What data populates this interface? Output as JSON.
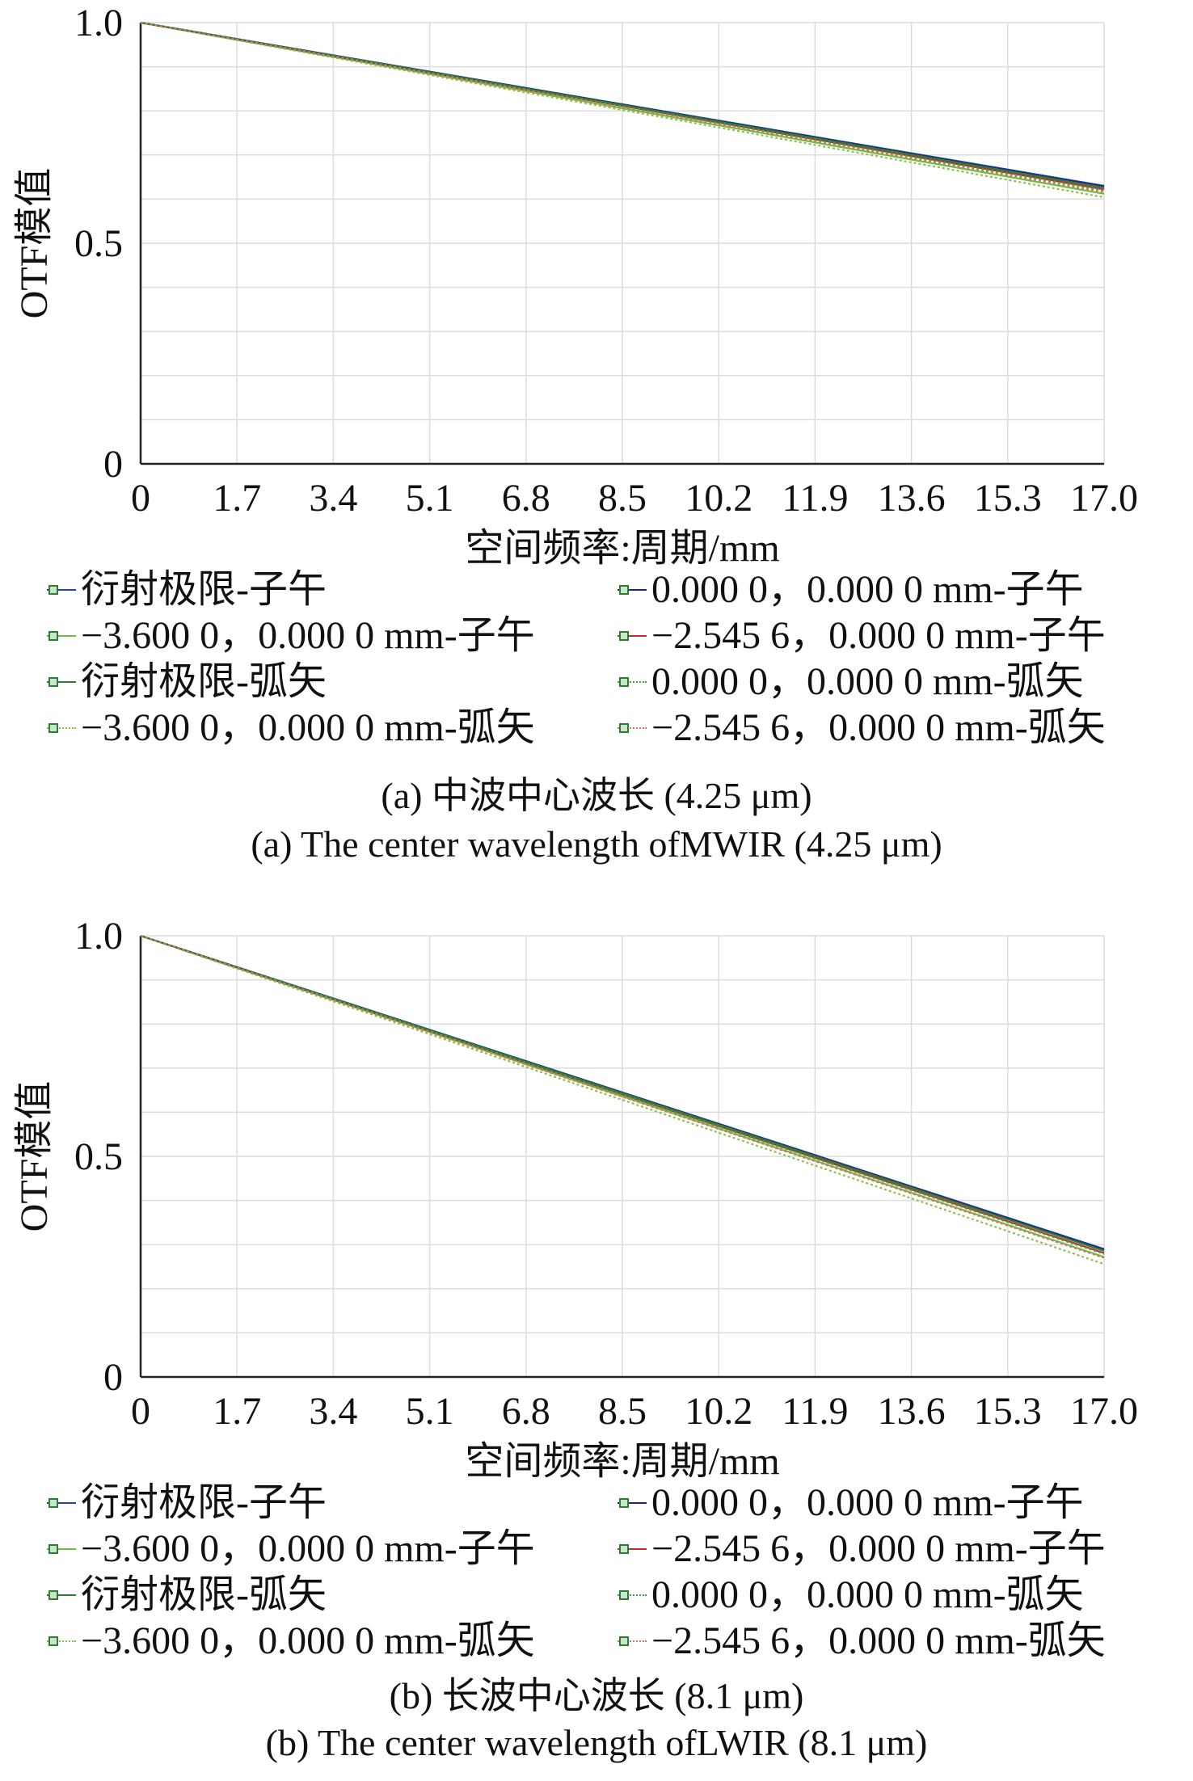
{
  "chart_data": [
    {
      "type": "line",
      "xlabel": "空间频率:周期/mm",
      "ylabel": "OTF模值",
      "xlim": [
        0,
        17.0
      ],
      "ylim": [
        0,
        1.0
      ],
      "x_ticks": [
        "0",
        "1.7",
        "3.4",
        "5.1",
        "6.8",
        "8.5",
        "10.2",
        "11.9",
        "13.6",
        "15.3",
        "17.0"
      ],
      "y_ticks": [
        "0",
        "0.5",
        "1.0"
      ],
      "grid": true,
      "legend_position": "bottom",
      "caption_cn": "(a) 中波中心波长  (4.25 μm)",
      "caption_en": "(a) The center wavelength ofMWIR (4.25 μm)",
      "series": [
        {
          "name": "衍射极限-子午",
          "color": "#1f3fbf",
          "dash": "solid",
          "x": [
            0,
            17.0
          ],
          "y": [
            1.0,
            0.63
          ]
        },
        {
          "name": "0.000 0，0.000 0 mm-子午",
          "color": "#1a237e",
          "dash": "solid",
          "x": [
            0,
            17.0
          ],
          "y": [
            1.0,
            0.628
          ]
        },
        {
          "name": "−3.600 0，0.000 0 mm-子午",
          "color": "#6abf40",
          "dash": "solid",
          "x": [
            0,
            17.0
          ],
          "y": [
            1.0,
            0.612
          ]
        },
        {
          "name": "−2.545 6，0.000 0 mm-子午",
          "color": "#c62828",
          "dash": "solid",
          "x": [
            0,
            17.0
          ],
          "y": [
            1.0,
            0.622
          ]
        },
        {
          "name": "衍射极限-弧矢",
          "color": "#2e7d32",
          "dash": "solid",
          "x": [
            0,
            17.0
          ],
          "y": [
            1.0,
            0.626
          ]
        },
        {
          "name": "0.000 0，0.000 0 mm-弧矢",
          "color": "#43a047",
          "dash": "dotted",
          "x": [
            0,
            17.0
          ],
          "y": [
            1.0,
            0.62
          ]
        },
        {
          "name": "−3.600 0，0.000 0 mm-弧矢",
          "color": "#8bc34a",
          "dash": "dotted",
          "x": [
            0,
            17.0
          ],
          "y": [
            1.0,
            0.604
          ]
        },
        {
          "name": "−2.545 6，0.000 0 mm-弧矢",
          "color": "#d4756a",
          "dash": "dotted",
          "x": [
            0,
            17.0
          ],
          "y": [
            1.0,
            0.616
          ]
        }
      ]
    },
    {
      "type": "line",
      "xlabel": "空间频率:周期/mm",
      "ylabel": "OTF模值",
      "xlim": [
        0,
        17.0
      ],
      "ylim": [
        0,
        1.0
      ],
      "x_ticks": [
        "0",
        "1.7",
        "3.4",
        "5.1",
        "6.8",
        "8.5",
        "10.2",
        "11.9",
        "13.6",
        "15.3",
        "17.0"
      ],
      "y_ticks": [
        "0",
        "0.5",
        "1.0"
      ],
      "grid": true,
      "legend_position": "bottom",
      "caption_cn": "(b) 长波中心波长  (8.1 μm)",
      "caption_en": "(b) The center wavelength ofLWIR (8.1 μm)",
      "series": [
        {
          "name": "衍射极限-子午",
          "color": "#1f3fbf",
          "dash": "solid",
          "x": [
            0,
            17.0
          ],
          "y": [
            1.0,
            0.29
          ]
        },
        {
          "name": "0.000 0，0.000 0 mm-子午",
          "color": "#1a237e",
          "dash": "solid",
          "x": [
            0,
            17.0
          ],
          "y": [
            1.0,
            0.288
          ]
        },
        {
          "name": "−3.600 0，0.000 0 mm-子午",
          "color": "#6abf40",
          "dash": "solid",
          "x": [
            0,
            17.0
          ],
          "y": [
            1.0,
            0.272
          ]
        },
        {
          "name": "−2.545 6，0.000 0 mm-子午",
          "color": "#c62828",
          "dash": "solid",
          "x": [
            0,
            17.0
          ],
          "y": [
            1.0,
            0.281
          ]
        },
        {
          "name": "衍射极限-弧矢",
          "color": "#2e7d32",
          "dash": "solid",
          "x": [
            0,
            17.0
          ],
          "y": [
            1.0,
            0.286
          ]
        },
        {
          "name": "0.000 0，0.000 0 mm-弧矢",
          "color": "#43a047",
          "dash": "dotted",
          "x": [
            0,
            17.0
          ],
          "y": [
            1.0,
            0.279
          ]
        },
        {
          "name": "−3.600 0，0.000 0 mm-弧矢",
          "color": "#8bc34a",
          "dash": "dotted",
          "x": [
            0,
            17.0
          ],
          "y": [
            1.0,
            0.256
          ]
        },
        {
          "name": "−2.545 6，0.000 0 mm-弧矢",
          "color": "#d4756a",
          "dash": "dotted",
          "x": [
            0,
            17.0
          ],
          "y": [
            1.0,
            0.27
          ]
        }
      ]
    }
  ]
}
